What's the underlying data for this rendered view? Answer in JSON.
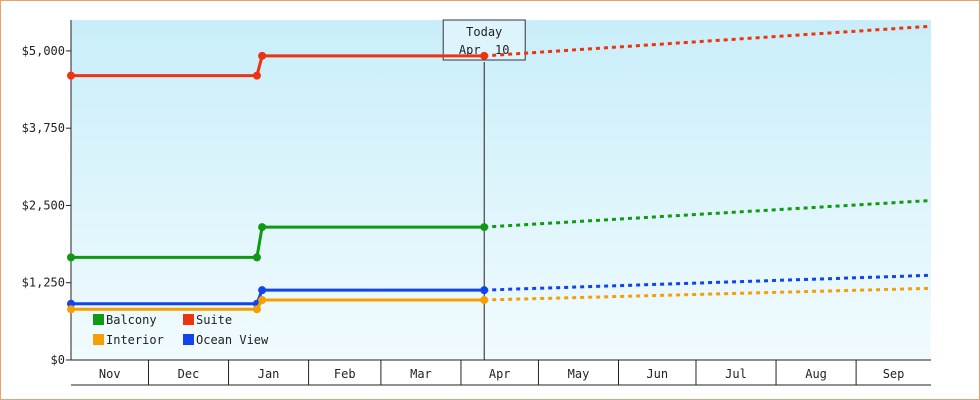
{
  "chart_data": {
    "type": "line",
    "today_label": "Today",
    "today_date": "Apr. 10",
    "today_x": "2025-04-10",
    "y_ticks": [
      {
        "value": 0,
        "label": "$0"
      },
      {
        "value": 1250,
        "label": "$1,250"
      },
      {
        "value": 2500,
        "label": "$2,500"
      },
      {
        "value": 3750,
        "label": "$3,750"
      },
      {
        "value": 5000,
        "label": "$5,000"
      }
    ],
    "ylim": [
      0,
      5500
    ],
    "xlim": [
      "2024-11-01",
      "2025-09-30"
    ],
    "x_ticks": [
      {
        "label": "Nov",
        "start": "2024-11-01",
        "end": "2024-12-01"
      },
      {
        "label": "Dec",
        "start": "2024-12-01",
        "end": "2025-01-01"
      },
      {
        "label": "Jan",
        "start": "2025-01-01",
        "end": "2025-02-01"
      },
      {
        "label": "Feb",
        "start": "2025-02-01",
        "end": "2025-03-01"
      },
      {
        "label": "Mar",
        "start": "2025-03-01",
        "end": "2025-04-01"
      },
      {
        "label": "Apr",
        "start": "2025-04-01",
        "end": "2025-05-01"
      },
      {
        "label": "May",
        "start": "2025-05-01",
        "end": "2025-06-01"
      },
      {
        "label": "Jun",
        "start": "2025-06-01",
        "end": "2025-07-01"
      },
      {
        "label": "Jul",
        "start": "2025-07-01",
        "end": "2025-08-01"
      },
      {
        "label": "Aug",
        "start": "2025-08-01",
        "end": "2025-09-01"
      },
      {
        "label": "Sep",
        "start": "2025-09-01",
        "end": "2025-09-30"
      }
    ],
    "series": [
      {
        "name": "Suite",
        "color": "#ee3311",
        "history": [
          {
            "x": "2024-11-01",
            "y": 4600
          },
          {
            "x": "2025-01-12",
            "y": 4600
          },
          {
            "x": "2025-01-14",
            "y": 4920
          },
          {
            "x": "2025-04-10",
            "y": 4920
          }
        ],
        "forecast": [
          {
            "x": "2025-04-10",
            "y": 4920
          },
          {
            "x": "2025-09-30",
            "y": 5400
          }
        ]
      },
      {
        "name": "Balcony",
        "color": "#119911",
        "history": [
          {
            "x": "2024-11-01",
            "y": 1660
          },
          {
            "x": "2025-01-12",
            "y": 1660
          },
          {
            "x": "2025-01-14",
            "y": 2150
          },
          {
            "x": "2025-04-10",
            "y": 2150
          }
        ],
        "forecast": [
          {
            "x": "2025-04-10",
            "y": 2150
          },
          {
            "x": "2025-09-30",
            "y": 2580
          }
        ]
      },
      {
        "name": "Ocean View",
        "color": "#1144ee",
        "history": [
          {
            "x": "2024-11-01",
            "y": 910
          },
          {
            "x": "2025-01-12",
            "y": 910
          },
          {
            "x": "2025-01-14",
            "y": 1130
          },
          {
            "x": "2025-04-10",
            "y": 1130
          }
        ],
        "forecast": [
          {
            "x": "2025-04-10",
            "y": 1130
          },
          {
            "x": "2025-09-30",
            "y": 1370
          }
        ]
      },
      {
        "name": "Interior",
        "color": "#f5a000",
        "history": [
          {
            "x": "2024-11-01",
            "y": 820
          },
          {
            "x": "2025-01-12",
            "y": 820
          },
          {
            "x": "2025-01-14",
            "y": 970
          },
          {
            "x": "2025-04-10",
            "y": 970
          }
        ],
        "forecast": [
          {
            "x": "2025-04-10",
            "y": 970
          },
          {
            "x": "2025-09-30",
            "y": 1160
          }
        ]
      }
    ],
    "legend": {
      "placement": "bottom-left",
      "entries": [
        {
          "label": "Balcony",
          "color": "#119911"
        },
        {
          "label": "Suite",
          "color": "#ee3311"
        },
        {
          "label": "Interior",
          "color": "#f5a000"
        },
        {
          "label": "Ocean View",
          "color": "#1144ee"
        }
      ]
    }
  }
}
